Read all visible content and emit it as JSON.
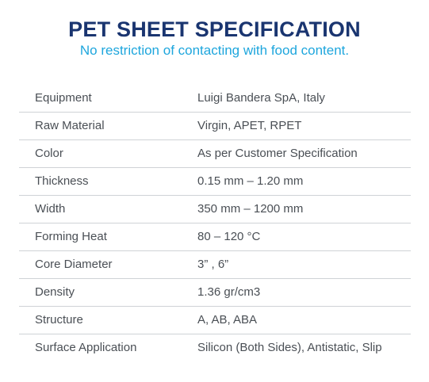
{
  "header": {
    "title": "PET SHEET SPECIFICATION",
    "subtitle": "No restriction of contacting with food content."
  },
  "specs": [
    {
      "label": "Equipment",
      "value": "Luigi Bandera SpA, Italy"
    },
    {
      "label": "Raw Material",
      "value": "Virgin, APET, RPET"
    },
    {
      "label": "Color",
      "value": "As per Customer Specification"
    },
    {
      "label": "Thickness",
      "value": "0.15 mm – 1.20 mm"
    },
    {
      "label": "Width",
      "value": "350 mm – 1200 mm"
    },
    {
      "label": "Forming Heat",
      "value": "80 – 120 °C"
    },
    {
      "label": "Core Diameter",
      "value": "3” , 6”"
    },
    {
      "label": "Density",
      "value": "1.36 gr/cm3"
    },
    {
      "label": "Structure",
      "value": "A, AB, ABA"
    },
    {
      "label": "Surface Application",
      "value": "Silicon (Both Sides), Antistatic, Slip"
    }
  ],
  "colors": {
    "title": "#1a3570",
    "subtitle": "#1ea6dd",
    "text": "#4a4f55",
    "divider": "#cfd2d6"
  }
}
